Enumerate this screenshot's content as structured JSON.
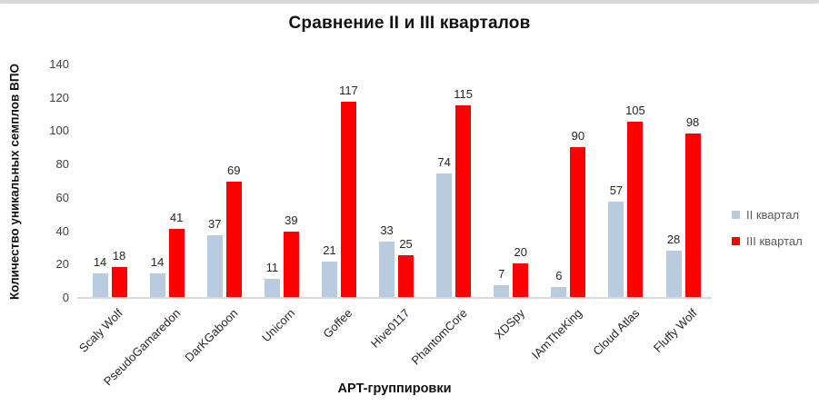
{
  "window": {
    "top_strip_color": "#d8d8d8",
    "background": "#ffffff"
  },
  "chart_data": {
    "type": "bar",
    "title": "Сравнение II и III кварталов",
    "xlabel": "APT-группировки",
    "ylabel": "Количество уникальных семплов ВПО",
    "categories": [
      "Scaly Wolf",
      "PseudoGamaredon",
      "DarKGaboon",
      "Unicorn",
      "Goffee",
      "Hive0117",
      "PhantomCore",
      "XDSpy",
      "IAmTheKing",
      "Cloud Atlas",
      "Fluffy Wolf"
    ],
    "series": [
      {
        "name": "II квартал",
        "color": "#b9cbdf",
        "values": [
          14,
          14,
          37,
          11,
          21,
          33,
          74,
          7,
          6,
          57,
          28
        ]
      },
      {
        "name": "III квартал",
        "color": "#ff0000",
        "values": [
          18,
          41,
          69,
          39,
          117,
          25,
          115,
          20,
          90,
          105,
          98
        ]
      }
    ],
    "ylim": [
      0,
      140
    ],
    "ytick_step": 20,
    "yticks": [
      0,
      20,
      40,
      60,
      80,
      100,
      120,
      140
    ],
    "grid": false,
    "data_labels": true,
    "legend_position": "right",
    "axis_line_color": "#d9d9d9"
  }
}
